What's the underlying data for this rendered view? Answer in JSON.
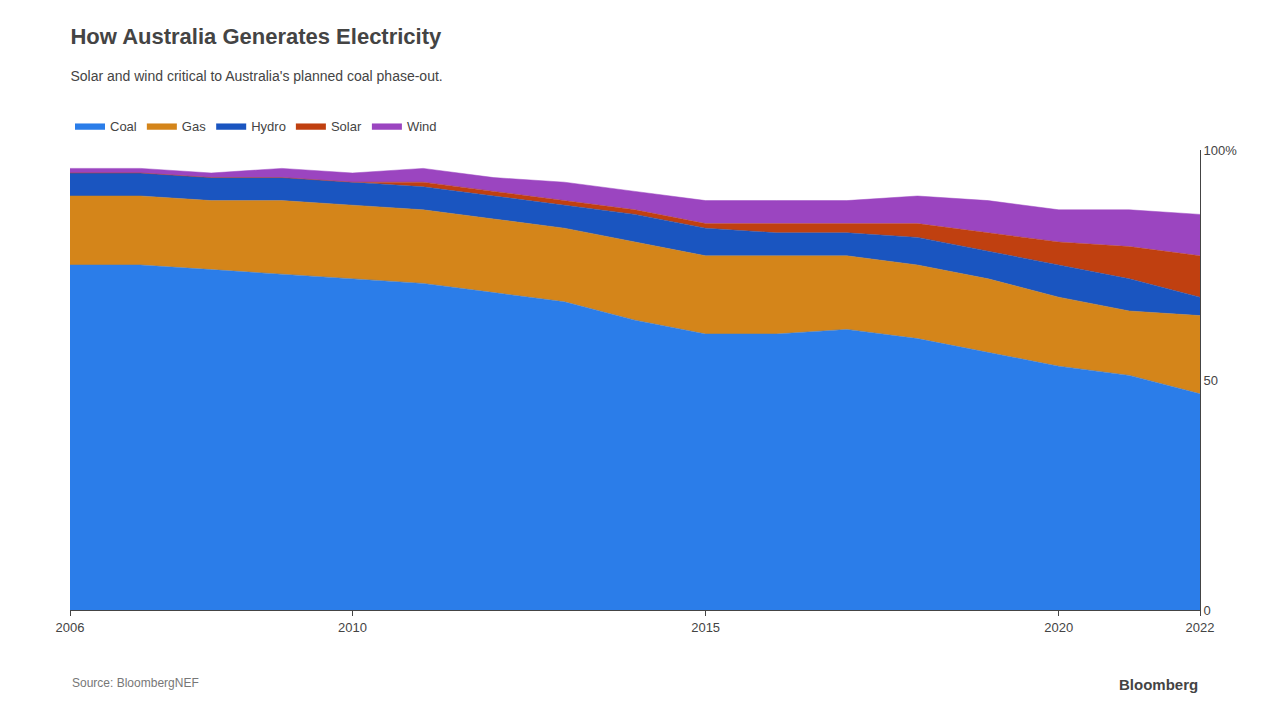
{
  "chart_data": {
    "type": "area",
    "title": "How Australia Generates Electricity",
    "subtitle": "Solar and wind critical to Australia's planned coal phase-out.",
    "annotations": [
      "Source: BloombergNEF",
      "Bloomberg"
    ],
    "stacked": true,
    "legend": "top left",
    "grid": true,
    "x": [
      2006,
      2007,
      2008,
      2009,
      2010,
      2011,
      2012,
      2013,
      2014,
      2015,
      2016,
      2017,
      2018,
      2019,
      2020,
      2021,
      2022
    ],
    "xlim": [
      2006,
      2022
    ],
    "xticks": [
      2006,
      2010,
      2015,
      2020,
      2022
    ],
    "ylim": [
      0,
      100
    ],
    "yticks": [
      0,
      50,
      {
        "value": 100,
        "label": "100%"
      }
    ],
    "series": [
      {
        "name": "Coal",
        "color": "#2b7de9",
        "values": [
          75,
          75,
          74,
          73,
          72,
          71,
          69,
          67,
          63,
          60,
          60,
          61,
          59,
          56,
          53,
          51,
          47
        ]
      },
      {
        "name": "Gas",
        "color": "#d4851a",
        "values": [
          15,
          15,
          15,
          16,
          16,
          16,
          16,
          16,
          17,
          17,
          17,
          16,
          16,
          16,
          15,
          14,
          17
        ]
      },
      {
        "name": "Hydro",
        "color": "#1a55c0",
        "values": [
          5,
          5,
          5,
          5,
          5,
          5,
          5,
          5,
          6,
          6,
          5,
          5,
          6,
          6,
          7,
          7,
          4
        ]
      },
      {
        "name": "Solar",
        "color": "#c04010",
        "values": [
          0,
          0,
          0,
          0,
          0,
          1,
          1,
          1,
          1,
          1,
          2,
          2,
          3,
          4,
          5,
          7,
          9
        ]
      },
      {
        "name": "Wind",
        "color": "#9b45c0",
        "values": [
          1,
          1,
          1,
          2,
          2,
          3,
          3,
          4,
          4,
          5,
          5,
          5,
          6,
          7,
          7,
          8,
          9
        ]
      }
    ]
  }
}
